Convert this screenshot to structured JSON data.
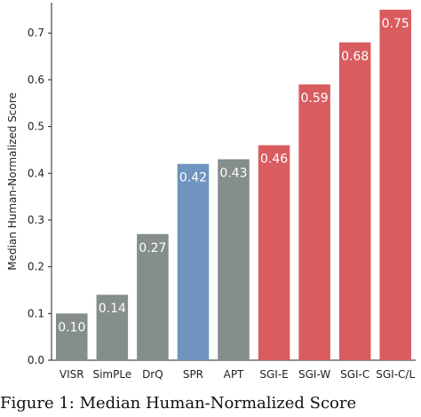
{
  "chart_data": {
    "type": "bar",
    "categories": [
      "VISR",
      "SimPLe",
      "DrQ",
      "SPR",
      "APT",
      "SGI-E",
      "SGI-W",
      "SGI-C",
      "SGI-C/L"
    ],
    "values": [
      0.1,
      0.14,
      0.27,
      0.42,
      0.43,
      0.46,
      0.59,
      0.68,
      0.75
    ],
    "data_labels": [
      "0.10",
      "0.14",
      "0.27",
      "0.42",
      "0.43",
      "0.46",
      "0.59",
      "0.68",
      "0.75"
    ],
    "colors": [
      "#858d8d",
      "#858d8d",
      "#858d8d",
      "#6e94bf",
      "#858d8d",
      "#d95c5f",
      "#d95c5f",
      "#d95c5f",
      "#d95c5f"
    ],
    "ylabel": "Median Human-Normalized Score",
    "xlabel": "",
    "ylim": [
      0,
      0.765
    ],
    "yticks": [
      "0.0",
      "0.1",
      "0.2",
      "0.3",
      "0.4",
      "0.5",
      "0.6",
      "0.7"
    ],
    "grid": false,
    "legend": "none"
  },
  "caption": "Figure 1: Median Human-Normalized Score"
}
